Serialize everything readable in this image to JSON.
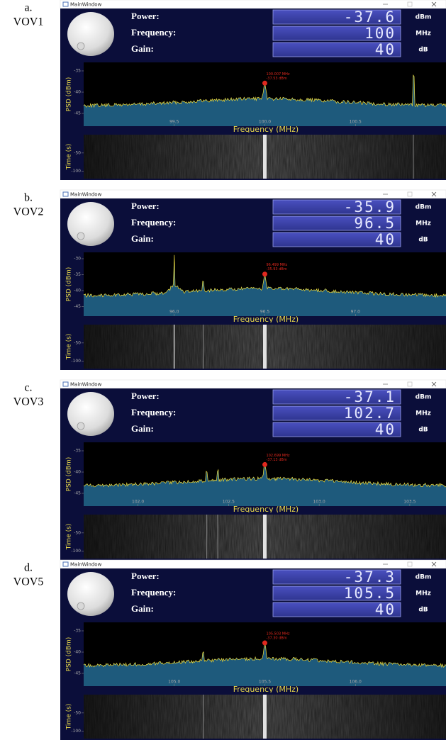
{
  "panels": [
    {
      "label": "a.",
      "name": "VOV1",
      "window_title": "MainWindow",
      "fields": [
        {
          "label": "Power:",
          "value": -37.6,
          "unit": "dBm"
        },
        {
          "label": "Frequency:",
          "value": 100,
          "unit": "MHz"
        },
        {
          "label": "Gain:",
          "value": 40,
          "unit": "dB"
        }
      ],
      "psd": {
        "ylabel": "PSD (dBm)",
        "xlabel": "Frequency (MHz)",
        "xlim": [
          99,
          101
        ],
        "ylim": [
          -48,
          -33
        ],
        "xticks": [
          99.5,
          {
            "value": 100,
            "label": "100.0"
          },
          100.5
        ],
        "yticks": [
          -45,
          -40,
          -35
        ],
        "marker": [
          "100.007 MHz",
          "-37.53 dBm"
        ]
      },
      "waterfall": {
        "ylabel": "Time (s)",
        "ylim": [
          0,
          -120
        ],
        "yticks": [
          -50,
          -100
        ]
      }
    },
    {
      "label": "b.",
      "name": "VOV2",
      "window_title": "MainWindow",
      "fields": [
        {
          "label": "Power:",
          "value": -35.9,
          "unit": "dBm"
        },
        {
          "label": "Frequency:",
          "value": 96.5,
          "unit": "MHz"
        },
        {
          "label": "Gain:",
          "value": 40,
          "unit": "dB"
        }
      ],
      "psd": {
        "ylabel": "PSD (dBm)",
        "xlabel": "Frequency (MHz)",
        "xlim": [
          95.5,
          97.5
        ],
        "ylim": [
          -48,
          -28
        ],
        "xticks": [
          {
            "value": 96,
            "label": "96.0"
          },
          96.5,
          {
            "value": 97,
            "label": "97.0"
          }
        ],
        "yticks": [
          -45,
          -40,
          -35,
          -30
        ],
        "marker": [
          "96.499 MHz",
          "-35.93 dBm"
        ]
      },
      "waterfall": {
        "ylabel": "Time (s)",
        "ylim": [
          0,
          -120
        ],
        "yticks": [
          -50,
          -100
        ]
      }
    },
    {
      "label": "c.",
      "name": "VOV3",
      "window_title": "MainWindow",
      "fields": [
        {
          "label": "Power:",
          "value": -37.1,
          "unit": "dBm"
        },
        {
          "label": "Frequency:",
          "value": 102.7,
          "unit": "MHz"
        },
        {
          "label": "Gain:",
          "value": 40,
          "unit": "dB"
        }
      ],
      "psd": {
        "ylabel": "PSD (dBm)",
        "xlabel": "Frequency (MHz)",
        "xlim": [
          101.7,
          103.7
        ],
        "ylim": [
          -48,
          -33
        ],
        "xticks": [
          {
            "value": 102,
            "label": "102.0"
          },
          102.5,
          {
            "value": 103,
            "label": "103.0"
          },
          103.5
        ],
        "yticks": [
          -45,
          -40,
          -35
        ],
        "marker": [
          "102.699 MHz",
          "-37.13 dBm"
        ]
      },
      "waterfall": {
        "ylabel": "Time (s)",
        "ylim": [
          0,
          -120
        ],
        "yticks": [
          -50,
          -100
        ]
      }
    },
    {
      "label": "d.",
      "name": "VOV5",
      "window_title": "MainWindow",
      "fields": [
        {
          "label": "Power:",
          "value": -37.3,
          "unit": "dBm"
        },
        {
          "label": "Frequency:",
          "value": 105.5,
          "unit": "MHz"
        },
        {
          "label": "Gain:",
          "value": 40,
          "unit": "dB"
        }
      ],
      "psd": {
        "ylabel": "PSD (dBm)",
        "xlabel": "Frequency (MHz)",
        "xlim": [
          104.5,
          106.5
        ],
        "ylim": [
          -48,
          -33
        ],
        "xticks": [
          {
            "value": 105,
            "label": "105.0"
          },
          105.5,
          {
            "value": 106,
            "label": "106.0"
          }
        ],
        "yticks": [
          -45,
          -40,
          -35
        ],
        "marker": [
          "105.503 MHz",
          "-37.30 dBm"
        ]
      },
      "waterfall": {
        "ylabel": "Time (s)",
        "ylim": [
          0,
          -120
        ],
        "yticks": [
          -50,
          -100
        ]
      }
    }
  ]
}
